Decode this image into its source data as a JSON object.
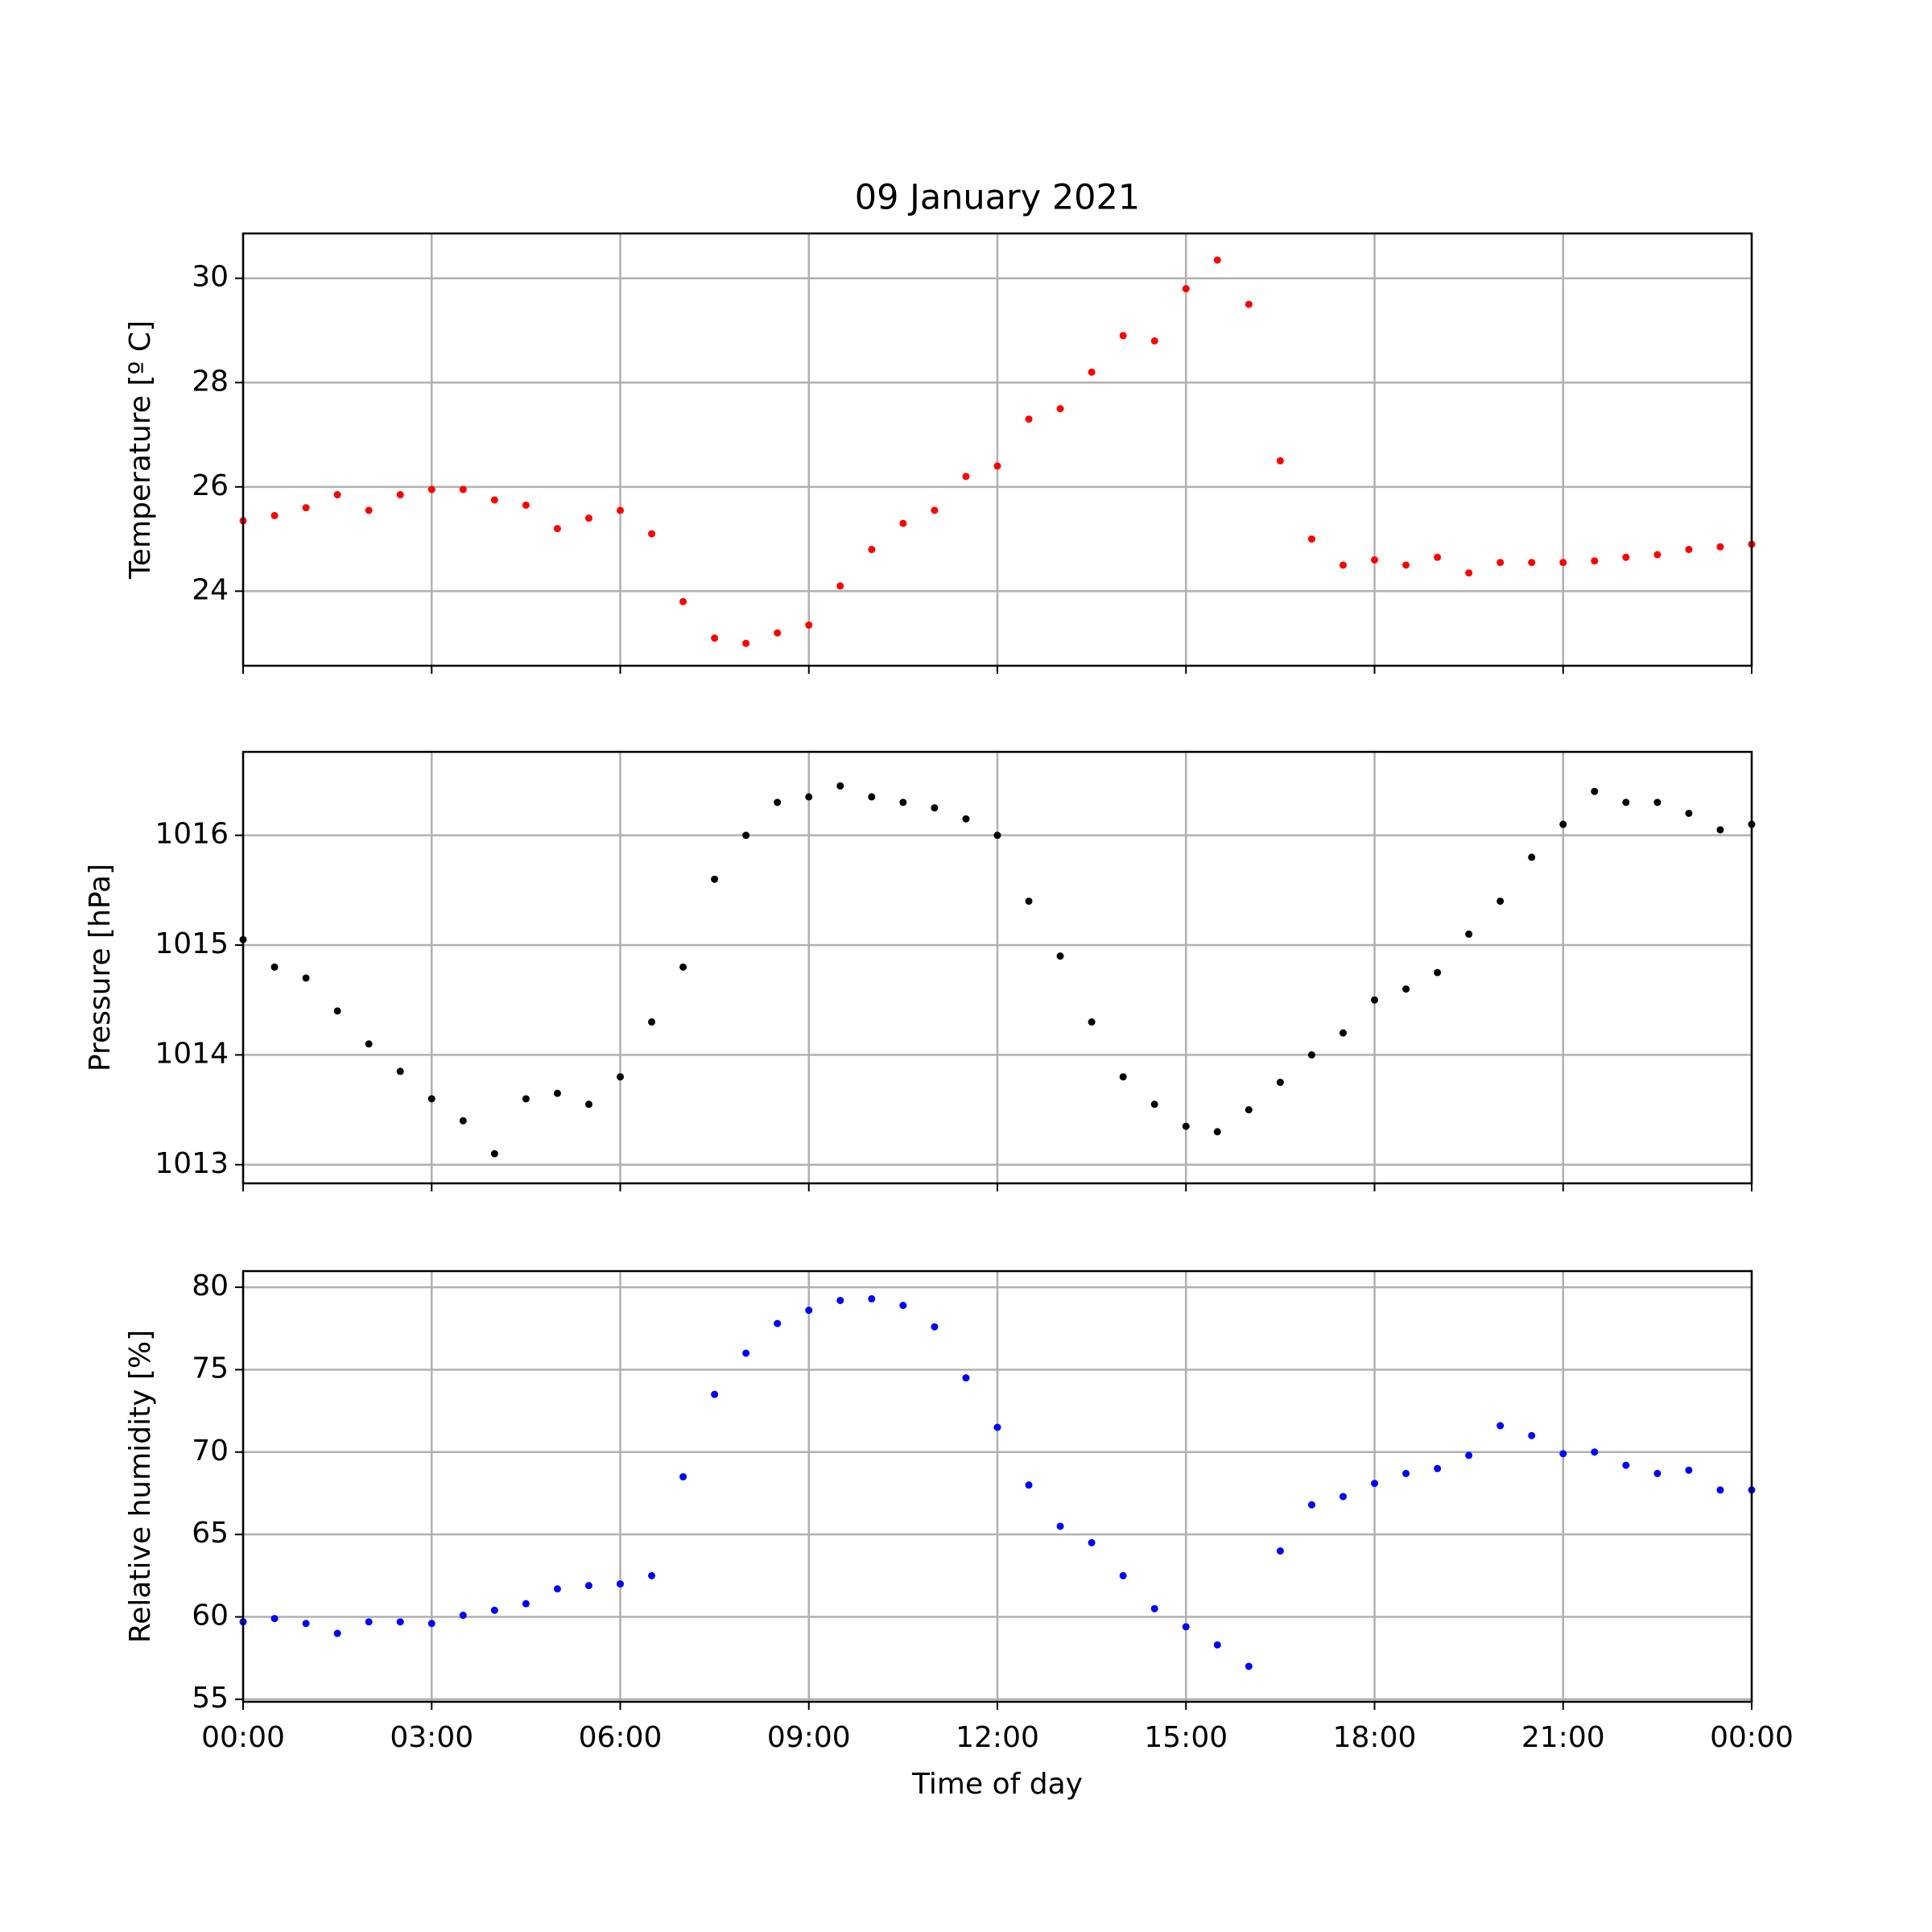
{
  "chart_data": [
    {
      "type": "scatter",
      "title": "09 January 2021",
      "ylabel": "Temperature [º C]",
      "x": [
        0,
        0.5,
        1,
        1.5,
        2,
        2.5,
        3,
        3.5,
        4,
        4.5,
        5,
        5.5,
        6,
        6.5,
        7,
        7.5,
        8,
        8.5,
        9,
        9.5,
        10,
        10.5,
        11,
        11.5,
        12,
        12.5,
        13,
        13.5,
        14,
        14.5,
        15,
        15.5,
        16,
        16.5,
        17,
        17.5,
        18,
        18.5,
        19,
        19.5,
        20,
        20.5,
        21,
        21.5,
        22,
        22.5,
        23,
        23.5,
        24
      ],
      "series": [
        {
          "color": "#ff0000",
          "values": [
            25.35,
            25.45,
            25.6,
            25.85,
            25.55,
            25.85,
            25.95,
            25.95,
            25.75,
            25.65,
            25.2,
            25.4,
            25.55,
            25.1,
            23.8,
            23.1,
            23.0,
            23.2,
            23.35,
            24.1,
            24.8,
            25.3,
            25.55,
            26.2,
            26.4,
            27.3,
            27.5,
            28.2,
            28.9,
            28.8,
            29.8,
            30.35,
            29.5,
            26.5,
            25.0,
            24.5,
            24.6,
            24.5,
            24.65,
            24.35,
            24.55,
            24.55,
            24.55,
            24.58,
            24.65,
            24.7,
            24.8,
            24.85,
            24.9
          ]
        }
      ],
      "xlim": [
        0,
        24
      ],
      "ylim": [
        22.57,
        30.86
      ],
      "yticks": [
        24,
        26,
        28,
        30
      ],
      "xticks": [
        {
          "value": 0,
          "label": "00:00"
        },
        {
          "value": 3,
          "label": "03:00"
        },
        {
          "value": 6,
          "label": "06:00"
        },
        {
          "value": 9,
          "label": "09:00"
        },
        {
          "value": 12,
          "label": "12:00"
        },
        {
          "value": 15,
          "label": "15:00"
        },
        {
          "value": 18,
          "label": "18:00"
        },
        {
          "value": 21,
          "label": "21:00"
        },
        {
          "value": 24,
          "label": "00:00"
        }
      ],
      "grid": true
    },
    {
      "type": "scatter",
      "ylabel": "Pressure [hPa]",
      "x": [
        0,
        0.5,
        1,
        1.5,
        2,
        2.5,
        3,
        3.5,
        4,
        4.5,
        5,
        5.5,
        6,
        6.5,
        7,
        7.5,
        8,
        8.5,
        9,
        9.5,
        10,
        10.5,
        11,
        11.5,
        12,
        12.5,
        13,
        13.5,
        14,
        14.5,
        15,
        15.5,
        16,
        16.5,
        17,
        17.5,
        18,
        18.5,
        19,
        19.5,
        20,
        20.5,
        21,
        21.5,
        22,
        22.5,
        23,
        23.5,
        24
      ],
      "series": [
        {
          "color": "#000000",
          "values": [
            1015.05,
            1014.8,
            1014.7,
            1014.4,
            1014.1,
            1013.85,
            1013.6,
            1013.4,
            1013.1,
            1013.6,
            1013.65,
            1013.55,
            1013.8,
            1014.3,
            1014.8,
            1015.6,
            1016.0,
            1016.3,
            1016.35,
            1016.45,
            1016.35,
            1016.3,
            1016.25,
            1016.15,
            1016.0,
            1015.4,
            1014.9,
            1014.3,
            1013.8,
            1013.55,
            1013.35,
            1013.3,
            1013.5,
            1013.75,
            1014.0,
            1014.2,
            1014.5,
            1014.6,
            1014.75,
            1015.1,
            1015.4,
            1015.8,
            1016.1,
            1016.4,
            1016.3,
            1016.3,
            1016.2,
            1016.05,
            1016.1
          ]
        }
      ],
      "xlim": [
        0,
        24
      ],
      "ylim": [
        1012.83,
        1016.76
      ],
      "yticks": [
        1013,
        1014,
        1015,
        1016
      ],
      "xticks": [
        {
          "value": 0,
          "label": "00:00"
        },
        {
          "value": 3,
          "label": "03:00"
        },
        {
          "value": 6,
          "label": "06:00"
        },
        {
          "value": 9,
          "label": "09:00"
        },
        {
          "value": 12,
          "label": "12:00"
        },
        {
          "value": 15,
          "label": "15:00"
        },
        {
          "value": 18,
          "label": "18:00"
        },
        {
          "value": 21,
          "label": "21:00"
        },
        {
          "value": 24,
          "label": "00:00"
        }
      ],
      "grid": true
    },
    {
      "type": "scatter",
      "ylabel": "Relative humidity [%]",
      "xlabel": "Time of day",
      "x": [
        0,
        0.5,
        1,
        1.5,
        2,
        2.5,
        3,
        3.5,
        4,
        4.5,
        5,
        5.5,
        6,
        6.5,
        7,
        7.5,
        8,
        8.5,
        9,
        9.5,
        10,
        10.5,
        11,
        11.5,
        12,
        12.5,
        13,
        13.5,
        14,
        14.5,
        15,
        15.5,
        16,
        16.5,
        17,
        17.5,
        18,
        18.5,
        19,
        19.5,
        20,
        20.5,
        21,
        21.5,
        22,
        22.5,
        23,
        23.5,
        24
      ],
      "series": [
        {
          "color": "#0000ff",
          "values": [
            59.7,
            59.9,
            59.6,
            59.0,
            59.7,
            59.7,
            59.6,
            60.1,
            60.4,
            60.8,
            61.7,
            61.9,
            62.0,
            62.5,
            68.5,
            73.5,
            76.0,
            77.8,
            78.6,
            79.2,
            79.3,
            78.9,
            77.6,
            74.5,
            71.5,
            68.0,
            65.5,
            64.5,
            62.5,
            60.5,
            59.4,
            58.3,
            57.0,
            64.0,
            66.8,
            67.3,
            68.1,
            68.7,
            69.0,
            69.8,
            71.6,
            71.0,
            69.9,
            70.0,
            69.2,
            68.7,
            68.9,
            67.7,
            67.7
          ]
        }
      ],
      "xlim": [
        0,
        24
      ],
      "ylim": [
        54.85,
        80.98
      ],
      "yticks": [
        55,
        60,
        65,
        70,
        75,
        80
      ],
      "xticks": [
        {
          "value": 0,
          "label": "00:00"
        },
        {
          "value": 3,
          "label": "03:00"
        },
        {
          "value": 6,
          "label": "06:00"
        },
        {
          "value": 9,
          "label": "09:00"
        },
        {
          "value": 12,
          "label": "12:00"
        },
        {
          "value": 15,
          "label": "15:00"
        },
        {
          "value": 18,
          "label": "18:00"
        },
        {
          "value": 21,
          "label": "21:00"
        },
        {
          "value": 24,
          "label": "00:00"
        }
      ],
      "grid": true
    }
  ]
}
